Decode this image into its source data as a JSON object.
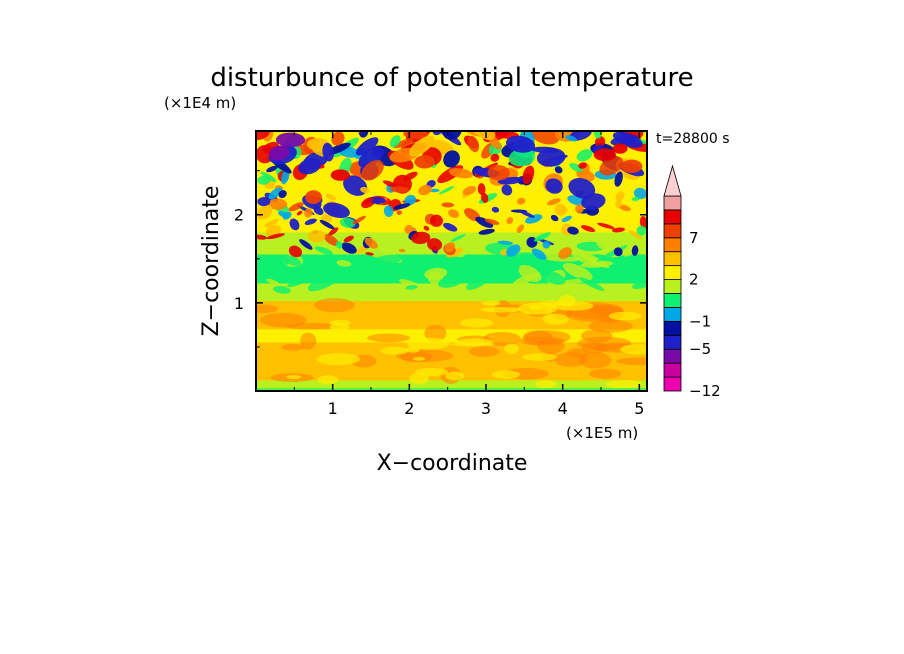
{
  "chart_data": {
    "type": "heatmap",
    "title": "disturbunce of potential temperature",
    "time_label": "t=28800 s",
    "xlabel": "X−coordinate",
    "ylabel": "Z−coordinate",
    "x_unit": "(×1E5 m)",
    "y_unit": "(×1E4 m)",
    "xlim": [
      0,
      5.1
    ],
    "ylim": [
      0,
      2.95
    ],
    "x_ticks": [
      1,
      2,
      3,
      4,
      5
    ],
    "x_tick_labels": [
      "1",
      "2",
      "3",
      "4",
      "5"
    ],
    "y_ticks": [
      1,
      2
    ],
    "y_tick_labels": [
      "1",
      "2"
    ],
    "colorbar": {
      "levels": [
        -12,
        -9,
        -7,
        -5,
        -3,
        -1,
        0,
        1,
        2,
        3,
        5,
        7,
        9,
        11
      ],
      "colors": [
        "#ee00b0",
        "#c800a0",
        "#7a0aa8",
        "#2020c8",
        "#0010a0",
        "#00a8e8",
        "#10f070",
        "#b8f020",
        "#fff000",
        "#ffc000",
        "#ff8000",
        "#f04000",
        "#e80000",
        "#f0a0a0",
        "#fad0d0"
      ],
      "tick_values": [
        -12,
        -5,
        -1,
        2,
        7
      ],
      "tick_labels": [
        "−12",
        "−5",
        "−1",
        "2",
        "7"
      ],
      "extend": "max"
    },
    "grid": false
  }
}
